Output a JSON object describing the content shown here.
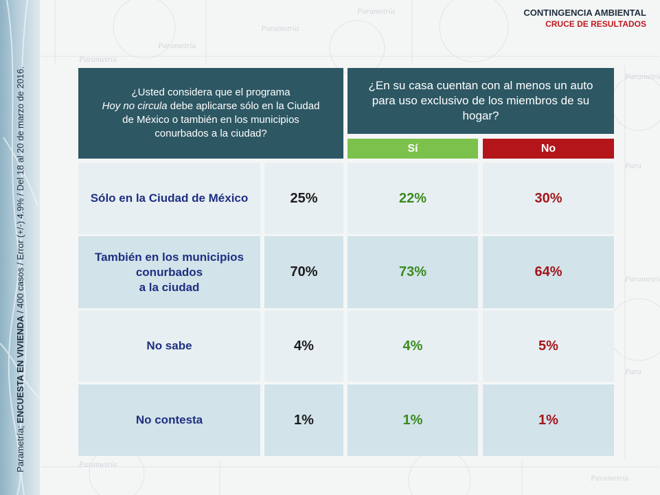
{
  "header": {
    "title": "CONTINGENCIA AMBIENTAL",
    "subtitle": "CRUCE DE RESULTADOS"
  },
  "side_note": {
    "prefix": "Parametría; ",
    "bold": "ENCUESTA EN VIVIENDA",
    "suffix": " / 400 casos / Error (+/-) 4.9% / Del 18 al 20 de marzo de 2016."
  },
  "question1": {
    "line1": "¿Usted considera que el programa",
    "italic": "Hoy no circula",
    "line2_rest": " debe aplicarse sólo en la Ciudad",
    "line3": "de México o también en los municipios",
    "line4": "conurbados a la ciudad?"
  },
  "question2": {
    "text": "¿En su casa cuentan con al menos un auto para uso exclusivo de los miembros de su hogar?"
  },
  "columns": {
    "si": "Sí",
    "no": "No"
  },
  "rows": [
    {
      "label": "Sólo en la Ciudad de México",
      "total": "25%",
      "si": "22%",
      "no": "30%"
    },
    {
      "label_l1": "También en los municipios",
      "label_l2": "conurbados",
      "label_l3": "a la ciudad",
      "total": "70%",
      "si": "73%",
      "no": "64%"
    },
    {
      "label": "No sabe",
      "total": "4%",
      "si": "4%",
      "no": "5%"
    },
    {
      "label": "No contesta",
      "total": "1%",
      "si": "1%",
      "no": "1%"
    }
  ],
  "colors": {
    "header_bg": "#2d5763",
    "si": "#7dc14d",
    "no": "#b3151b",
    "row_label": "#1e2f80"
  }
}
